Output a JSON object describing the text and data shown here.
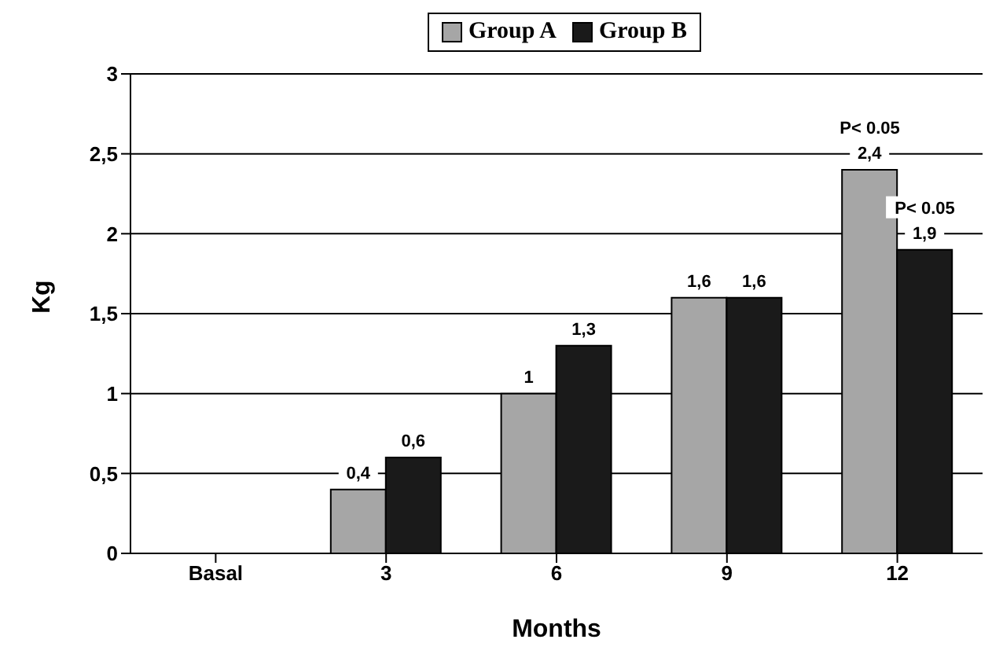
{
  "chart_data": {
    "type": "bar",
    "xlabel": "Months",
    "ylabel": "Kg",
    "categories": [
      "Basal",
      "3",
      "6",
      "9",
      "12"
    ],
    "series": [
      {
        "name": "Group A",
        "color": "#a6a6a6",
        "values": [
          0,
          0.4,
          1,
          1.6,
          2.4
        ],
        "value_labels": [
          null,
          "0,4",
          "1",
          "1,6",
          "2,4"
        ]
      },
      {
        "name": "Group B",
        "color": "#1a1a1a",
        "values": [
          0,
          0.6,
          1.3,
          1.6,
          1.9
        ],
        "value_labels": [
          null,
          "0,6",
          "1,3",
          "1,6",
          "1,9"
        ]
      }
    ],
    "ylim": [
      0,
      3
    ],
    "yticks": [
      0,
      {
        "value": 0.5,
        "label": "0,5"
      },
      1,
      {
        "value": 1.5,
        "label": "1,5"
      },
      2,
      {
        "value": 2.5,
        "label": "2,5"
      },
      3
    ],
    "grid": "y",
    "legend": "top",
    "annotations": [
      {
        "text": "P< 0.05",
        "x": "12",
        "y": 2.4
      },
      {
        "text": "P< 0.05",
        "x": "12",
        "y": 1.9
      }
    ]
  }
}
